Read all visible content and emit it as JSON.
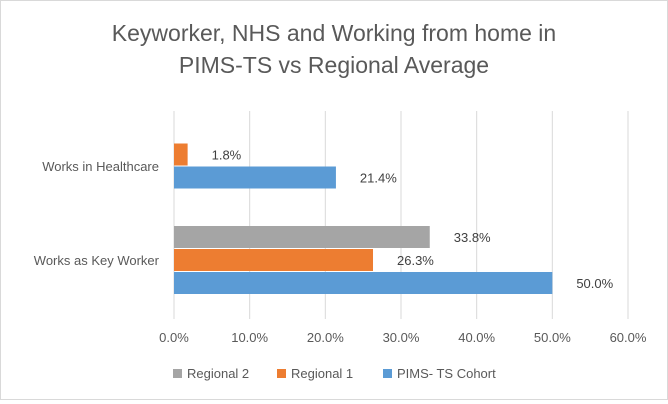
{
  "chart_data": {
    "type": "bar",
    "orientation": "horizontal",
    "title_lines": [
      "Keyworker, NHS and Working from home in",
      "PIMS-TS vs Regional Average"
    ],
    "categories": [
      "Works in Healthcare",
      "Works as Key Worker"
    ],
    "series": [
      {
        "name": "Regional 2",
        "color": "#a5a5a5",
        "values": [
          null,
          33.8
        ],
        "labels": [
          "",
          "33.8%"
        ]
      },
      {
        "name": "Regional 1",
        "color": "#ed7d31",
        "values": [
          1.8,
          26.3
        ],
        "labels": [
          "1.8%",
          "26.3%"
        ]
      },
      {
        "name": "PIMS- TS Cohort",
        "color": "#5b9bd5",
        "values": [
          21.4,
          50.0
        ],
        "labels": [
          "21.4%",
          "50.0%"
        ]
      }
    ],
    "xlim": [
      0,
      60
    ],
    "x_ticks": [
      0,
      10,
      20,
      30,
      40,
      50,
      60
    ],
    "x_tick_labels": [
      "0.0%",
      "10.0%",
      "20.0%",
      "30.0%",
      "40.0%",
      "50.0%",
      "60.0%"
    ],
    "xlabel": "",
    "ylabel": "",
    "grid": true,
    "legend_position": "bottom",
    "legend_order": [
      "Regional 2",
      "Regional 1",
      "PIMS- TS Cohort"
    ]
  }
}
